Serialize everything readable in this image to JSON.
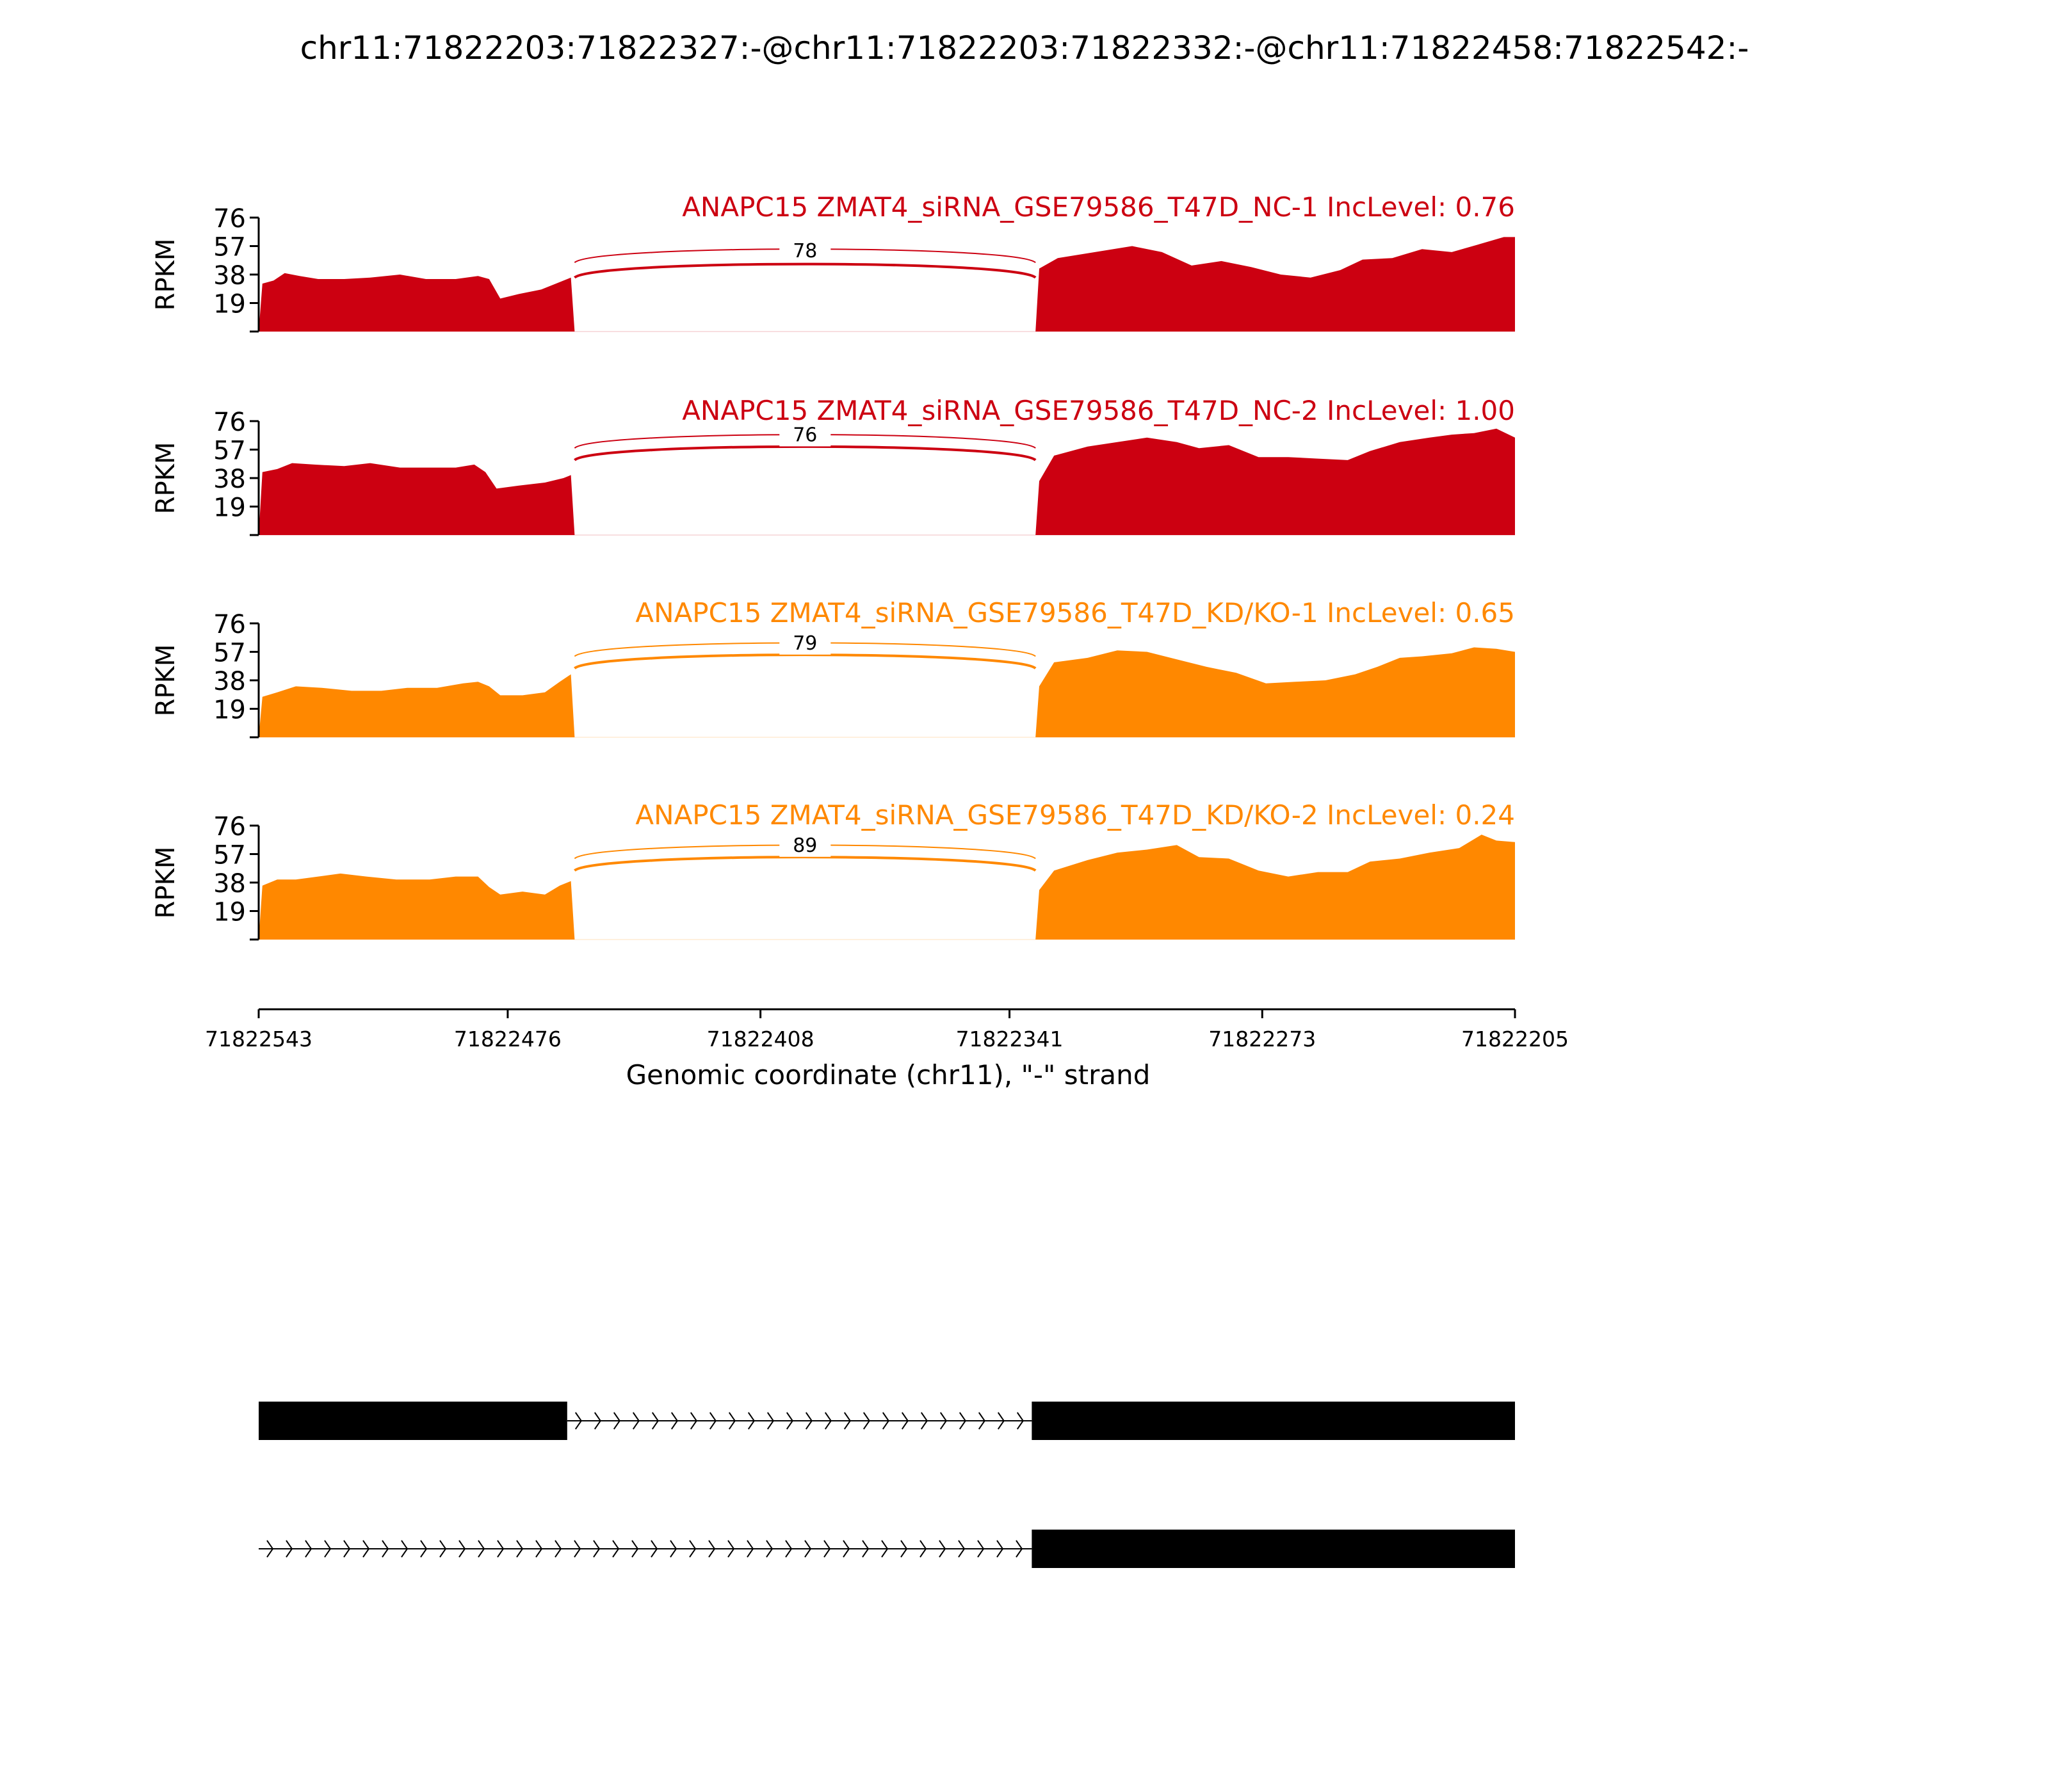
{
  "title": "chr11:71822203:71822327:-@chr11:71822203:71822332:-@chr11:71822458:71822542:-",
  "chart_data": {
    "type": "area",
    "title": "chr11:71822203:71822327:-@chr11:71822203:71822332:-@chr11:71822458:71822542:-",
    "ylabel": "RPKM",
    "yticks": [
      19,
      38,
      57,
      76
    ],
    "ylim": [
      0,
      76
    ],
    "xlabel": "Genomic coordinate (chr11), \"-\" strand",
    "xlim": [
      71822543,
      71822205
    ],
    "xticks": [
      71822543,
      71822476,
      71822408,
      71822341,
      71822273,
      71822205
    ],
    "tracks": [
      {
        "label": "ANAPC15 ZMAT4_siRNA_GSE79586_T47D_NC-1 IncLevel: 0.76",
        "color": "#cc0011",
        "junction_count": "78",
        "exon1": [
          [
            71822543,
            0
          ],
          [
            71822542,
            32
          ],
          [
            71822539,
            34
          ],
          [
            71822536,
            39
          ],
          [
            71822532,
            37
          ],
          [
            71822527,
            35
          ],
          [
            71822520,
            35
          ],
          [
            71822513,
            36
          ],
          [
            71822505,
            38
          ],
          [
            71822498,
            35
          ],
          [
            71822490,
            35
          ],
          [
            71822484,
            37
          ],
          [
            71822481,
            35
          ],
          [
            71822478,
            22
          ],
          [
            71822473,
            25
          ],
          [
            71822467,
            28
          ],
          [
            71822462,
            33
          ],
          [
            71822459,
            36
          ],
          [
            71822458,
            0
          ]
        ],
        "exon2": [
          [
            71822334,
            0
          ],
          [
            71822333,
            42
          ],
          [
            71822328,
            49
          ],
          [
            71822318,
            53
          ],
          [
            71822308,
            57
          ],
          [
            71822300,
            53
          ],
          [
            71822292,
            44
          ],
          [
            71822284,
            47
          ],
          [
            71822276,
            43
          ],
          [
            71822268,
            38
          ],
          [
            71822260,
            36
          ],
          [
            71822252,
            41
          ],
          [
            71822246,
            48
          ],
          [
            71822238,
            49
          ],
          [
            71822230,
            55
          ],
          [
            71822222,
            53
          ],
          [
            71822215,
            58
          ],
          [
            71822208,
            63
          ],
          [
            71822205,
            63
          ],
          [
            71822205,
            0
          ]
        ],
        "arcs": [
          {
            "from": 71822458,
            "to": 71822334,
            "height": 58
          },
          {
            "from": 71822458,
            "to": 71822334,
            "height": 48
          }
        ]
      },
      {
        "label": "ANAPC15 ZMAT4_siRNA_GSE79586_T47D_NC-2 IncLevel: 1.00",
        "color": "#cc0011",
        "junction_count": "76",
        "exon1": [
          [
            71822543,
            0
          ],
          [
            71822542,
            42
          ],
          [
            71822538,
            44
          ],
          [
            71822534,
            48
          ],
          [
            71822528,
            47
          ],
          [
            71822520,
            46
          ],
          [
            71822513,
            48
          ],
          [
            71822505,
            45
          ],
          [
            71822497,
            45
          ],
          [
            71822490,
            45
          ],
          [
            71822485,
            47
          ],
          [
            71822482,
            42
          ],
          [
            71822479,
            31
          ],
          [
            71822473,
            33
          ],
          [
            71822466,
            35
          ],
          [
            71822461,
            38
          ],
          [
            71822459,
            40
          ],
          [
            71822458,
            0
          ]
        ],
        "exon2": [
          [
            71822334,
            0
          ],
          [
            71822333,
            36
          ],
          [
            71822329,
            53
          ],
          [
            71822320,
            59
          ],
          [
            71822312,
            62
          ],
          [
            71822304,
            65
          ],
          [
            71822296,
            62
          ],
          [
            71822290,
            58
          ],
          [
            71822282,
            60
          ],
          [
            71822274,
            52
          ],
          [
            71822266,
            52
          ],
          [
            71822258,
            51
          ],
          [
            71822250,
            50
          ],
          [
            71822244,
            56
          ],
          [
            71822236,
            62
          ],
          [
            71822228,
            65
          ],
          [
            71822222,
            67
          ],
          [
            71822216,
            68
          ],
          [
            71822210,
            71
          ],
          [
            71822205,
            65
          ],
          [
            71822205,
            0
          ]
        ],
        "arcs": [
          {
            "from": 71822458,
            "to": 71822334,
            "height": 70
          },
          {
            "from": 71822458,
            "to": 71822334,
            "height": 62
          }
        ]
      },
      {
        "label": "ANAPC15 ZMAT4_siRNA_GSE79586_T47D_KD/KO-1 IncLevel: 0.65",
        "color": "#ff8800",
        "junction_count": "79",
        "exon1": [
          [
            71822543,
            0
          ],
          [
            71822542,
            27
          ],
          [
            71822538,
            30
          ],
          [
            71822533,
            34
          ],
          [
            71822526,
            33
          ],
          [
            71822518,
            31
          ],
          [
            71822510,
            31
          ],
          [
            71822503,
            33
          ],
          [
            71822495,
            33
          ],
          [
            71822488,
            36
          ],
          [
            71822484,
            37
          ],
          [
            71822481,
            34
          ],
          [
            71822478,
            28
          ],
          [
            71822472,
            28
          ],
          [
            71822466,
            30
          ],
          [
            71822462,
            37
          ],
          [
            71822459,
            42
          ],
          [
            71822458,
            0
          ]
        ],
        "exon2": [
          [
            71822334,
            0
          ],
          [
            71822333,
            34
          ],
          [
            71822329,
            50
          ],
          [
            71822320,
            53
          ],
          [
            71822312,
            58
          ],
          [
            71822304,
            57
          ],
          [
            71822296,
            52
          ],
          [
            71822288,
            47
          ],
          [
            71822280,
            43
          ],
          [
            71822272,
            36
          ],
          [
            71822264,
            37
          ],
          [
            71822256,
            38
          ],
          [
            71822248,
            42
          ],
          [
            71822242,
            47
          ],
          [
            71822236,
            53
          ],
          [
            71822230,
            54
          ],
          [
            71822222,
            56
          ],
          [
            71822216,
            60
          ],
          [
            71822210,
            59
          ],
          [
            71822205,
            57
          ],
          [
            71822205,
            0
          ]
        ],
        "arcs": [
          {
            "from": 71822458,
            "to": 71822334,
            "height": 66
          },
          {
            "from": 71822458,
            "to": 71822334,
            "height": 58
          }
        ]
      },
      {
        "label": "ANAPC15 ZMAT4_siRNA_GSE79586_T47D_KD/KO-2 IncLevel: 0.24",
        "color": "#ff8800",
        "junction_count": "89",
        "exon1": [
          [
            71822543,
            0
          ],
          [
            71822542,
            36
          ],
          [
            71822538,
            40
          ],
          [
            71822533,
            40
          ],
          [
            71822527,
            42
          ],
          [
            71822521,
            44
          ],
          [
            71822514,
            42
          ],
          [
            71822506,
            40
          ],
          [
            71822497,
            40
          ],
          [
            71822490,
            42
          ],
          [
            71822484,
            42
          ],
          [
            71822481,
            35
          ],
          [
            71822478,
            30
          ],
          [
            71822472,
            32
          ],
          [
            71822466,
            30
          ],
          [
            71822462,
            36
          ],
          [
            71822459,
            39
          ],
          [
            71822458,
            0
          ]
        ],
        "exon2": [
          [
            71822334,
            0
          ],
          [
            71822333,
            33
          ],
          [
            71822329,
            46
          ],
          [
            71822320,
            53
          ],
          [
            71822312,
            58
          ],
          [
            71822304,
            60
          ],
          [
            71822296,
            63
          ],
          [
            71822290,
            55
          ],
          [
            71822282,
            54
          ],
          [
            71822274,
            46
          ],
          [
            71822266,
            42
          ],
          [
            71822258,
            45
          ],
          [
            71822250,
            45
          ],
          [
            71822244,
            52
          ],
          [
            71822236,
            54
          ],
          [
            71822228,
            58
          ],
          [
            71822220,
            61
          ],
          [
            71822214,
            70
          ],
          [
            71822210,
            66
          ],
          [
            71822205,
            65
          ],
          [
            71822205,
            0
          ]
        ],
        "arcs": [
          {
            "from": 71822458,
            "to": 71822334,
            "height": 66
          },
          {
            "from": 71822458,
            "to": 71822334,
            "height": 58
          }
        ]
      }
    ],
    "gene_models": [
      {
        "exons": [
          [
            71822543,
            71822460
          ],
          [
            71822335,
            71822205
          ]
        ],
        "intron": [
          71822460,
          71822335
        ]
      },
      {
        "exons": [
          [
            71822335,
            71822205
          ]
        ],
        "intron": [
          71822543,
          71822335
        ]
      }
    ]
  }
}
